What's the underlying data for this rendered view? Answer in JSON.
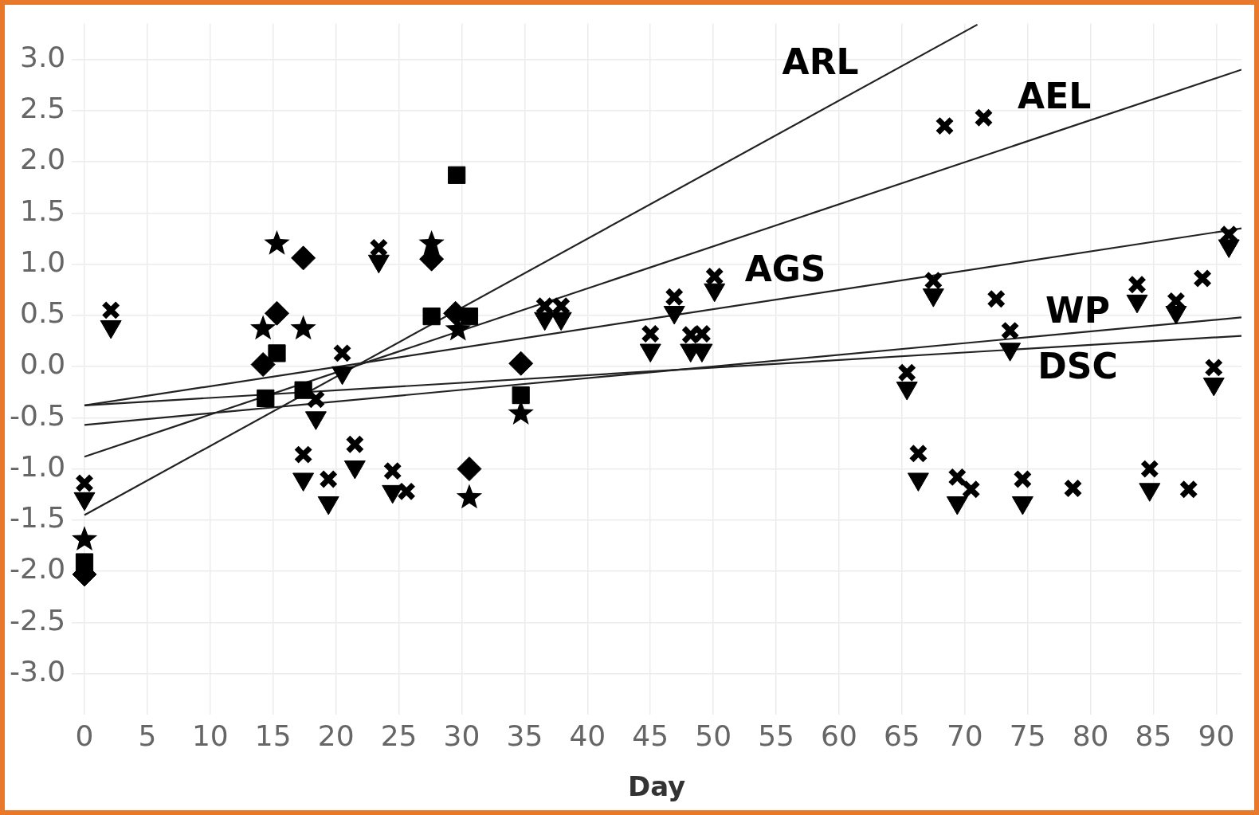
{
  "chart_data": {
    "type": "scatter",
    "xlabel": "Day",
    "xlim": [
      -1,
      92
    ],
    "xticks": [
      0,
      5,
      10,
      15,
      20,
      25,
      30,
      35,
      40,
      45,
      50,
      55,
      60,
      65,
      70,
      75,
      80,
      85,
      90
    ],
    "ylim": [
      -3.4,
      3.35
    ],
    "yticks": [
      {
        "value": -3,
        "label": "-3.0"
      },
      -2.5,
      {
        "value": -2,
        "label": "-2.0"
      },
      -1.5,
      {
        "value": -1,
        "label": "-1.0"
      },
      -0.5,
      {
        "value": 0,
        "label": "0.0"
      },
      0.5,
      {
        "value": 1,
        "label": "1.0"
      },
      1.5,
      {
        "value": 2,
        "label": "2.0"
      },
      2.5,
      {
        "value": 3,
        "label": "3.0"
      }
    ],
    "grid": true,
    "legend": false,
    "series": [
      {
        "type": "scatter",
        "marker": "cross",
        "color": "#000000",
        "x": [
          0,
          2.1,
          17.4,
          18.4,
          19.4,
          20.5,
          21.5,
          23.4,
          24.5,
          25.6,
          36.6,
          37.9,
          45,
          46.9,
          48.2,
          49.1,
          50.1,
          65.4,
          66.3,
          67.5,
          68.4,
          69.4,
          70.5,
          71.5,
          72.5,
          73.6,
          74.6,
          78.6,
          83.7,
          84.7,
          86.8,
          87.8,
          88.9,
          89.8,
          91
        ],
        "values": [
          -1.14,
          0.55,
          -0.86,
          -0.32,
          -1.1,
          0.13,
          -0.76,
          1.16,
          -1.02,
          -1.22,
          0.59,
          0.59,
          0.32,
          0.68,
          0.31,
          0.32,
          0.88,
          -0.06,
          -0.85,
          0.84,
          2.35,
          -1.08,
          -1.2,
          2.43,
          0.66,
          0.35,
          -1.1,
          -1.19,
          0.8,
          -1.0,
          0.64,
          -1.2,
          0.86,
          -0.01,
          1.29
        ]
      },
      {
        "type": "scatter",
        "marker": "triangle",
        "color": "#000000",
        "x": [
          0,
          2.1,
          17.4,
          18.4,
          19.4,
          20.5,
          21.5,
          23.4,
          24.5,
          36.6,
          37.9,
          45,
          46.9,
          48.2,
          49.1,
          50.1,
          65.4,
          66.3,
          67.5,
          69.4,
          73.6,
          74.6,
          83.7,
          84.7,
          86.8,
          89.8,
          91
        ],
        "values": [
          -1.29,
          0.39,
          -1.1,
          -0.5,
          -1.33,
          -0.06,
          -0.98,
          1.03,
          -1.22,
          0.47,
          0.47,
          0.16,
          0.53,
          0.16,
          0.16,
          0.75,
          -0.21,
          -1.1,
          0.7,
          -1.33,
          0.17,
          -1.33,
          0.64,
          -1.2,
          0.53,
          -0.17,
          1.18
        ]
      },
      {
        "type": "scatter",
        "marker": "diamond",
        "color": "#000000",
        "x": [
          0,
          14.2,
          15.3,
          17.4,
          27.6,
          29.5,
          30.6,
          34.7
        ],
        "values": [
          -2.03,
          0.02,
          0.52,
          1.06,
          1.05,
          0.52,
          -1.0,
          0.03
        ]
      },
      {
        "type": "scatter",
        "marker": "star",
        "color": "#000000",
        "x": [
          0,
          14.2,
          15.3,
          17.4,
          27.6,
          29.7,
          30.6,
          34.7
        ],
        "values": [
          -1.69,
          0.37,
          1.2,
          0.37,
          1.2,
          0.36,
          -1.28,
          -0.46
        ]
      },
      {
        "type": "scatter",
        "marker": "square",
        "color": "#000000",
        "x": [
          0,
          14.4,
          15.3,
          17.4,
          27.6,
          29.6,
          30.6,
          34.7
        ],
        "values": [
          -1.91,
          -0.31,
          0.13,
          -0.23,
          0.49,
          1.87,
          0.49,
          -0.28
        ]
      },
      {
        "type": "line",
        "name": "ARL",
        "marker": "none",
        "color": "#222222",
        "x": [
          0,
          71
        ],
        "values": [
          -1.45,
          3.34
        ]
      },
      {
        "type": "line",
        "name": "AEL",
        "marker": "none",
        "color": "#222222",
        "x": [
          0,
          92
        ],
        "values": [
          -0.88,
          2.9
        ]
      },
      {
        "type": "line",
        "name": "AGS",
        "marker": "none",
        "color": "#222222",
        "x": [
          0,
          92
        ],
        "values": [
          -0.38,
          1.35
        ]
      },
      {
        "type": "line",
        "name": "WP",
        "marker": "none",
        "color": "#222222",
        "x": [
          0,
          92
        ],
        "values": [
          -0.57,
          0.48
        ]
      },
      {
        "type": "line",
        "name": "DSC",
        "marker": "none",
        "color": "#222222",
        "x": [
          0,
          92
        ],
        "values": [
          -0.38,
          0.3
        ]
      }
    ]
  }
}
